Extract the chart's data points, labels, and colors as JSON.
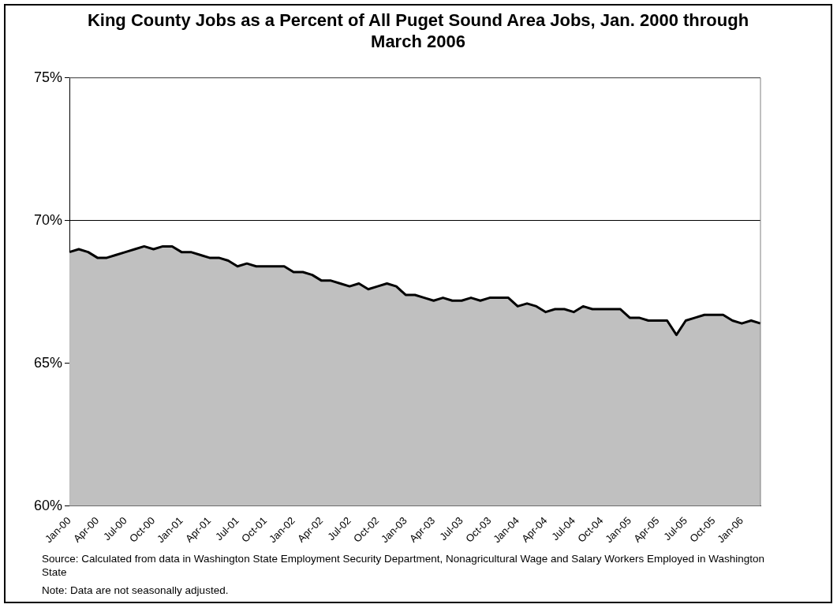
{
  "chart_data": {
    "type": "area",
    "title": "King County Jobs as a Percent of All Puget Sound Area Jobs, Jan. 2000 through March 2006",
    "categories": [
      "Jan-00",
      null,
      null,
      "Apr-00",
      null,
      null,
      "Jul-00",
      null,
      null,
      "Oct-00",
      null,
      null,
      "Jan-01",
      null,
      null,
      "Apr-01",
      null,
      null,
      "Jul-01",
      null,
      null,
      "Oct-01",
      null,
      null,
      "Jan-02",
      null,
      null,
      "Apr-02",
      null,
      null,
      "Jul-02",
      null,
      null,
      "Oct-02",
      null,
      null,
      "Jan-03",
      null,
      null,
      "Apr-03",
      null,
      null,
      "Jul-03",
      null,
      null,
      "Oct-03",
      null,
      null,
      "Jan-04",
      null,
      null,
      "Apr-04",
      null,
      null,
      "Jul-04",
      null,
      null,
      "Oct-04",
      null,
      null,
      "Jan-05",
      null,
      null,
      "Apr-05",
      null,
      null,
      "Jul-05",
      null,
      null,
      "Oct-05",
      null,
      null,
      "Jan-06",
      null,
      null
    ],
    "series": [
      {
        "color": "#c0c0c0",
        "values": [
          68.9,
          69.0,
          68.9,
          68.7,
          68.7,
          68.8,
          68.9,
          69.0,
          69.1,
          69.0,
          69.1,
          69.1,
          68.9,
          68.9,
          68.8,
          68.7,
          68.7,
          68.6,
          68.4,
          68.5,
          68.4,
          68.4,
          68.4,
          68.4,
          68.2,
          68.2,
          68.1,
          67.9,
          67.9,
          67.8,
          67.7,
          67.8,
          67.6,
          67.7,
          67.8,
          67.7,
          67.4,
          67.4,
          67.3,
          67.2,
          67.3,
          67.2,
          67.2,
          67.3,
          67.2,
          67.3,
          67.3,
          67.3,
          67.0,
          67.1,
          67.0,
          66.8,
          66.9,
          66.9,
          66.8,
          67.0,
          66.9,
          66.9,
          66.9,
          66.9,
          66.6,
          66.6,
          66.5,
          66.5,
          66.5,
          66.0,
          66.5,
          66.6,
          66.7,
          66.7,
          66.7,
          66.5,
          66.4,
          66.5,
          66.4
        ]
      }
    ],
    "ylim": [
      60,
      75
    ],
    "yticks": [
      {
        "value": 60,
        "label": "60%"
      },
      {
        "value": 65,
        "label": "65%"
      },
      {
        "value": 70,
        "label": "70%"
      },
      {
        "value": 75,
        "label": "75%"
      }
    ],
    "grid": "y",
    "annotations": [
      "Source: Calculated from data in Washington State Employment Security Department, Nonagricultural Wage and Salary Workers Employed in Washington State",
      "Note: Data are not seasonally adjusted."
    ]
  }
}
